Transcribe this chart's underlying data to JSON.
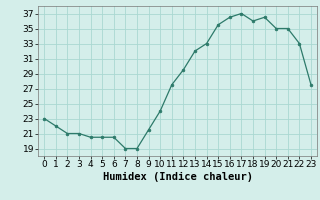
{
  "x": [
    0,
    1,
    2,
    3,
    4,
    5,
    6,
    7,
    8,
    9,
    10,
    11,
    12,
    13,
    14,
    15,
    16,
    17,
    18,
    19,
    20,
    21,
    22,
    23
  ],
  "y": [
    23,
    22,
    21,
    21,
    20.5,
    20.5,
    20.5,
    19,
    19,
    21.5,
    24,
    27.5,
    29.5,
    32,
    33,
    35.5,
    36.5,
    37,
    36,
    36.5,
    35,
    35,
    33,
    27.5
  ],
  "line_color": "#2d7a6a",
  "marker_color": "#2d7a6a",
  "bg_color": "#d4eeea",
  "grid_color": "#aad8d2",
  "xlabel": "Humidex (Indice chaleur)",
  "xlim": [
    -0.5,
    23.5
  ],
  "ylim": [
    18,
    38
  ],
  "yticks": [
    19,
    21,
    23,
    25,
    27,
    29,
    31,
    33,
    35,
    37
  ],
  "xticks": [
    0,
    1,
    2,
    3,
    4,
    5,
    6,
    7,
    8,
    9,
    10,
    11,
    12,
    13,
    14,
    15,
    16,
    17,
    18,
    19,
    20,
    21,
    22,
    23
  ],
  "tick_font_size": 6.5,
  "label_font_size": 7.5
}
